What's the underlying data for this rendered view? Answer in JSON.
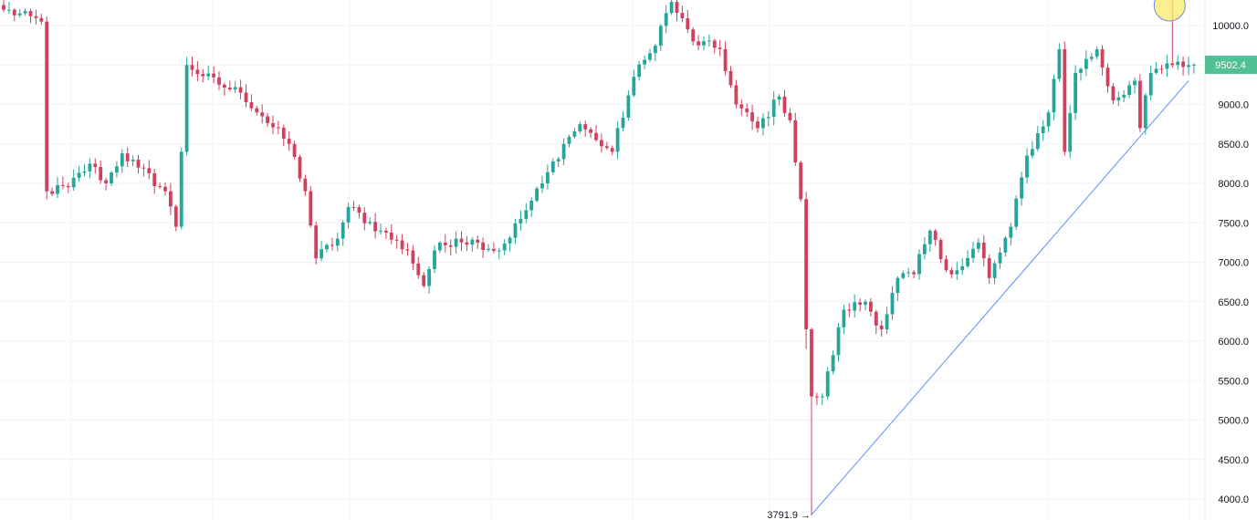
{
  "chart_data": {
    "type": "candlestick",
    "title": "",
    "xlabel": "",
    "ylabel": "",
    "ylim": [
      3850,
      10330
    ],
    "y_ticks": [
      "4000.0",
      "4500.0",
      "5000.0",
      "5500.0",
      "6000.0",
      "6500.0",
      "7000.0",
      "7500.0",
      "8000.0",
      "8500.0",
      "9000.0",
      "9500.0",
      "10000.0"
    ],
    "grid": true,
    "colors": {
      "up": "#26a69a",
      "down": "#d1405e",
      "trendline": "#5b8ff9",
      "price_badge": "#4fc195",
      "marker": "#fbe96a"
    },
    "current_price": {
      "label": "9502.4",
      "value": 9502.4
    },
    "low_marker": {
      "label": "3791.9",
      "value": 3791.9,
      "index": 150
    },
    "trendline": {
      "from": {
        "index": 150,
        "value": 3800
      },
      "to": {
        "index": 220,
        "value": 9300
      }
    },
    "highlight_index": 217,
    "waypoints": [
      [
        0,
        10200
      ],
      [
        7,
        10050
      ],
      [
        8,
        7900
      ],
      [
        12,
        7950
      ],
      [
        16,
        8250
      ],
      [
        19,
        8000
      ],
      [
        22,
        8380
      ],
      [
        25,
        8200
      ],
      [
        30,
        7900
      ],
      [
        32,
        7450
      ],
      [
        33,
        8400
      ],
      [
        34,
        9500
      ],
      [
        40,
        9250
      ],
      [
        44,
        9150
      ],
      [
        48,
        8850
      ],
      [
        53,
        8500
      ],
      [
        56,
        7900
      ],
      [
        58,
        7050
      ],
      [
        62,
        7300
      ],
      [
        64,
        7700
      ],
      [
        70,
        7400
      ],
      [
        75,
        7150
      ],
      [
        78,
        6700
      ],
      [
        80,
        7150
      ],
      [
        84,
        7300
      ],
      [
        88,
        7250
      ],
      [
        92,
        7150
      ],
      [
        96,
        7550
      ],
      [
        100,
        8000
      ],
      [
        104,
        8500
      ],
      [
        107,
        8750
      ],
      [
        110,
        8550
      ],
      [
        113,
        8400
      ],
      [
        117,
        9350
      ],
      [
        120,
        9650
      ],
      [
        124,
        10300
      ],
      [
        128,
        9800
      ],
      [
        133,
        9700
      ],
      [
        136,
        9000
      ],
      [
        140,
        8700
      ],
      [
        144,
        9100
      ],
      [
        146,
        8800
      ],
      [
        148,
        7800
      ],
      [
        149,
        6150
      ],
      [
        150,
        5300
      ],
      [
        152,
        5300
      ],
      [
        156,
        6400
      ],
      [
        160,
        6500
      ],
      [
        163,
        6150
      ],
      [
        166,
        6800
      ],
      [
        169,
        6850
      ],
      [
        172,
        7400
      ],
      [
        175,
        6900
      ],
      [
        178,
        6950
      ],
      [
        181,
        7250
      ],
      [
        183,
        6800
      ],
      [
        187,
        7450
      ],
      [
        190,
        8350
      ],
      [
        194,
        8900
      ],
      [
        196,
        9700
      ],
      [
        197,
        8400
      ],
      [
        199,
        9400
      ],
      [
        203,
        9700
      ],
      [
        206,
        9050
      ],
      [
        210,
        9300
      ],
      [
        211,
        8700
      ],
      [
        213,
        9400
      ],
      [
        217,
        9500
      ],
      [
        221,
        9502
      ]
    ]
  }
}
